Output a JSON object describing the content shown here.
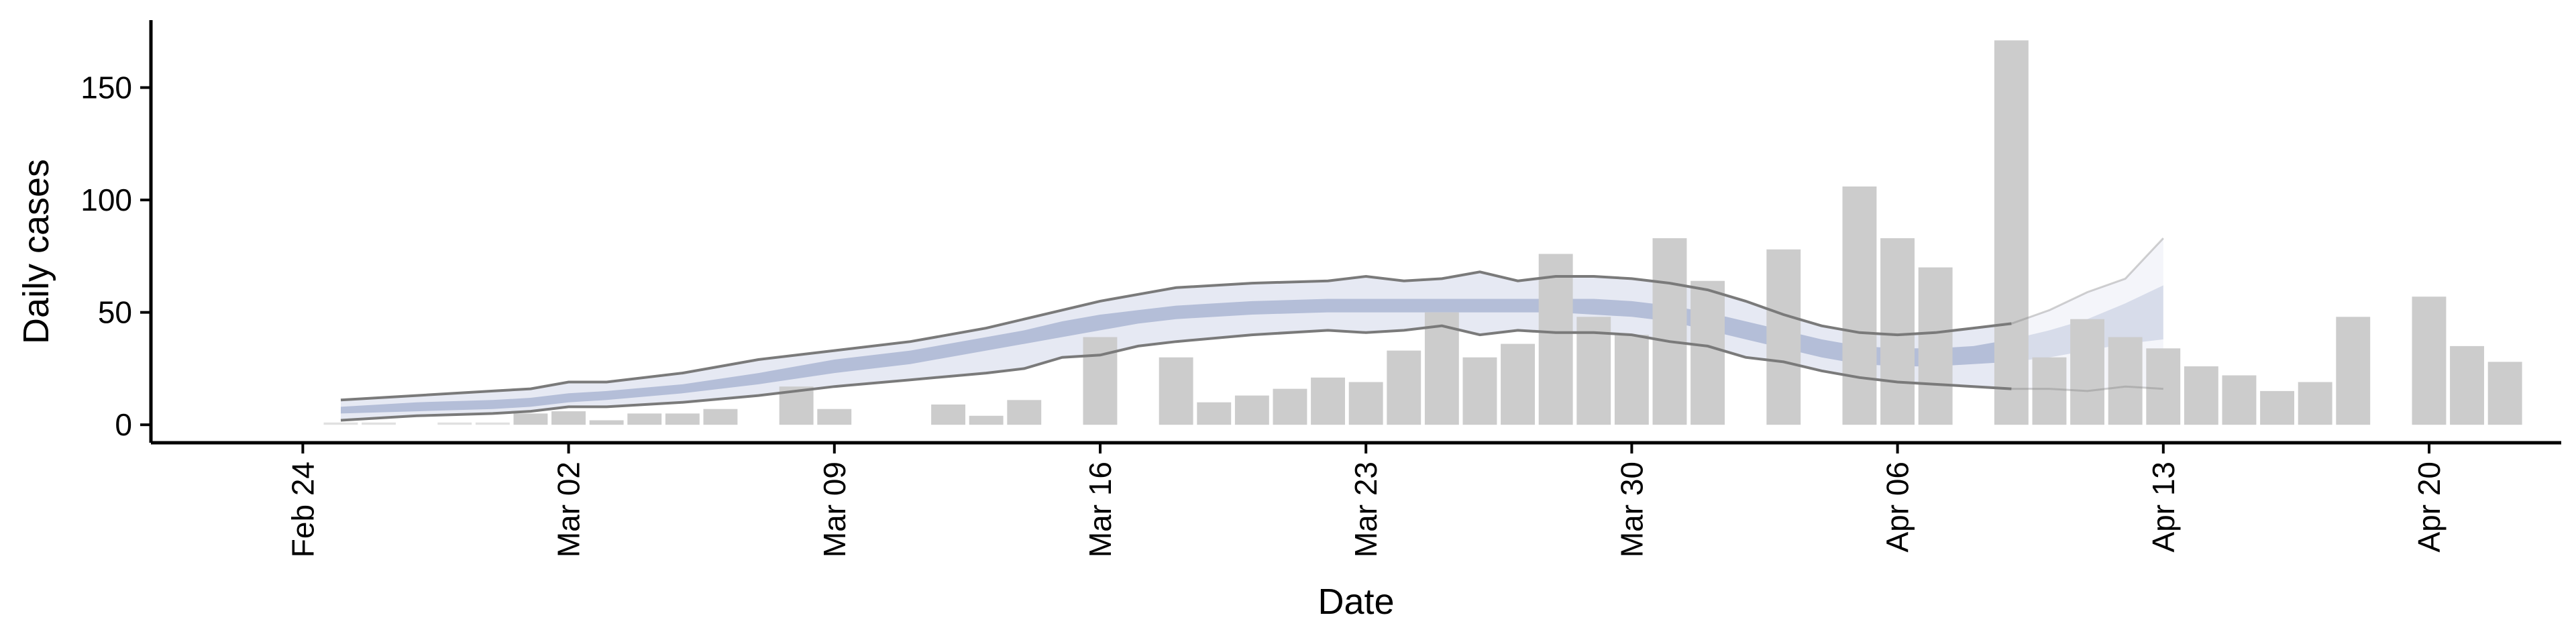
{
  "chart_data": {
    "type": "bar",
    "xlabel": "Date",
    "ylabel": "Daily cases",
    "ylim": [
      -8,
      180
    ],
    "xlim": [
      "2020-02-20",
      "2020-04-26"
    ],
    "x_ticks": [
      {
        "date": "2020-02-24",
        "label": "Feb 24"
      },
      {
        "date": "2020-03-02",
        "label": "Mar 02"
      },
      {
        "date": "2020-03-09",
        "label": "Mar 09"
      },
      {
        "date": "2020-03-16",
        "label": "Mar 16"
      },
      {
        "date": "2020-03-23",
        "label": "Mar 23"
      },
      {
        "date": "2020-03-30",
        "label": "Mar 30"
      },
      {
        "date": "2020-04-06",
        "label": "Apr 06"
      },
      {
        "date": "2020-04-13",
        "label": "Apr 13"
      },
      {
        "date": "2020-04-20",
        "label": "Apr 20"
      }
    ],
    "y_ticks": [
      0,
      50,
      100,
      150
    ],
    "grid": false,
    "colors": {
      "bars": "#cccccc",
      "bars_light": "#e0e0e0",
      "median_band": "#b4bed8",
      "ci_band": "#e6e9f3",
      "ci_lines": "#7a7a7a",
      "axis": "#000000"
    },
    "bars": {
      "x": [
        "2020-02-25",
        "2020-02-26",
        "2020-02-28",
        "2020-02-29",
        "2020-03-01",
        "2020-03-02",
        "2020-03-03",
        "2020-03-04",
        "2020-03-05",
        "2020-03-06",
        "2020-03-08",
        "2020-03-09",
        "2020-03-12",
        "2020-03-13",
        "2020-03-14",
        "2020-03-16",
        "2020-03-18",
        "2020-03-19",
        "2020-03-20",
        "2020-03-21",
        "2020-03-22",
        "2020-03-23",
        "2020-03-24",
        "2020-03-25",
        "2020-03-26",
        "2020-03-27",
        "2020-03-28",
        "2020-03-29",
        "2020-03-30",
        "2020-03-31",
        "2020-04-01",
        "2020-04-03",
        "2020-04-05",
        "2020-04-06",
        "2020-04-07",
        "2020-04-09",
        "2020-04-10",
        "2020-04-11",
        "2020-04-12",
        "2020-04-13",
        "2020-04-14",
        "2020-04-15",
        "2020-04-16",
        "2020-04-17",
        "2020-04-18",
        "2020-04-20",
        "2020-04-21",
        "2020-04-22"
      ],
      "values": [
        1,
        1,
        1,
        1,
        5,
        6,
        2,
        5,
        5,
        7,
        17,
        7,
        9,
        4,
        11,
        39,
        30,
        10,
        13,
        16,
        21,
        19,
        33,
        50,
        30,
        36,
        76,
        48,
        40,
        83,
        64,
        78,
        106,
        83,
        70,
        171,
        30,
        47,
        39,
        34,
        26,
        22,
        15,
        19,
        48,
        57,
        35,
        28
      ]
    },
    "estimate": {
      "x": [
        "2020-02-25",
        "2020-02-27",
        "2020-02-29",
        "2020-03-01",
        "2020-03-02",
        "2020-03-03",
        "2020-03-05",
        "2020-03-07",
        "2020-03-09",
        "2020-03-11",
        "2020-03-13",
        "2020-03-14",
        "2020-03-15",
        "2020-03-16",
        "2020-03-17",
        "2020-03-18",
        "2020-03-20",
        "2020-03-22",
        "2020-03-23",
        "2020-03-24",
        "2020-03-25",
        "2020-03-26",
        "2020-03-27",
        "2020-03-28",
        "2020-03-29",
        "2020-03-30",
        "2020-03-31",
        "2020-04-01",
        "2020-04-02",
        "2020-04-03",
        "2020-04-04",
        "2020-04-05",
        "2020-04-06",
        "2020-04-07",
        "2020-04-08",
        "2020-04-09",
        "2020-04-10",
        "2020-04-11",
        "2020-04-12",
        "2020-04-13"
      ],
      "median": [
        6,
        8,
        9,
        10,
        12,
        13,
        16,
        20,
        26,
        30,
        36,
        39,
        42,
        45,
        48,
        50,
        52,
        53,
        53,
        53,
        53,
        53,
        53,
        53,
        53,
        52,
        50,
        46,
        42,
        38,
        34,
        31,
        30,
        30,
        31,
        33,
        36,
        40,
        45,
        52
      ],
      "inner_lower": [
        5,
        6,
        7,
        8,
        10,
        11,
        14,
        18,
        23,
        27,
        33,
        36,
        39,
        42,
        45,
        47,
        49,
        50,
        50,
        50,
        50,
        50,
        50,
        50,
        49,
        48,
        46,
        42,
        38,
        34,
        30,
        27,
        26,
        26,
        27,
        28,
        30,
        33,
        36,
        38
      ],
      "inner_upper": [
        8,
        10,
        11,
        12,
        14,
        15,
        18,
        23,
        29,
        33,
        39,
        42,
        46,
        49,
        51,
        53,
        55,
        56,
        56,
        56,
        56,
        56,
        56,
        56,
        56,
        55,
        53,
        50,
        46,
        42,
        38,
        35,
        34,
        34,
        35,
        38,
        42,
        47,
        54,
        62
      ],
      "outer_lower": [
        2,
        4,
        5,
        6,
        8,
        8,
        10,
        13,
        17,
        20,
        23,
        25,
        30,
        31,
        35,
        37,
        40,
        42,
        41,
        42,
        44,
        40,
        42,
        41,
        41,
        40,
        37,
        35,
        30,
        28,
        24,
        21,
        19,
        18,
        17,
        16,
        16,
        15,
        17,
        16
      ],
      "outer_upper": [
        11,
        13,
        15,
        16,
        19,
        19,
        23,
        29,
        33,
        37,
        43,
        47,
        51,
        55,
        58,
        61,
        63,
        64,
        66,
        64,
        65,
        68,
        64,
        66,
        66,
        65,
        63,
        60,
        55,
        49,
        44,
        41,
        40,
        41,
        43,
        45,
        51,
        59,
        65,
        83
      ],
      "faded_from": "2020-04-09"
    }
  }
}
